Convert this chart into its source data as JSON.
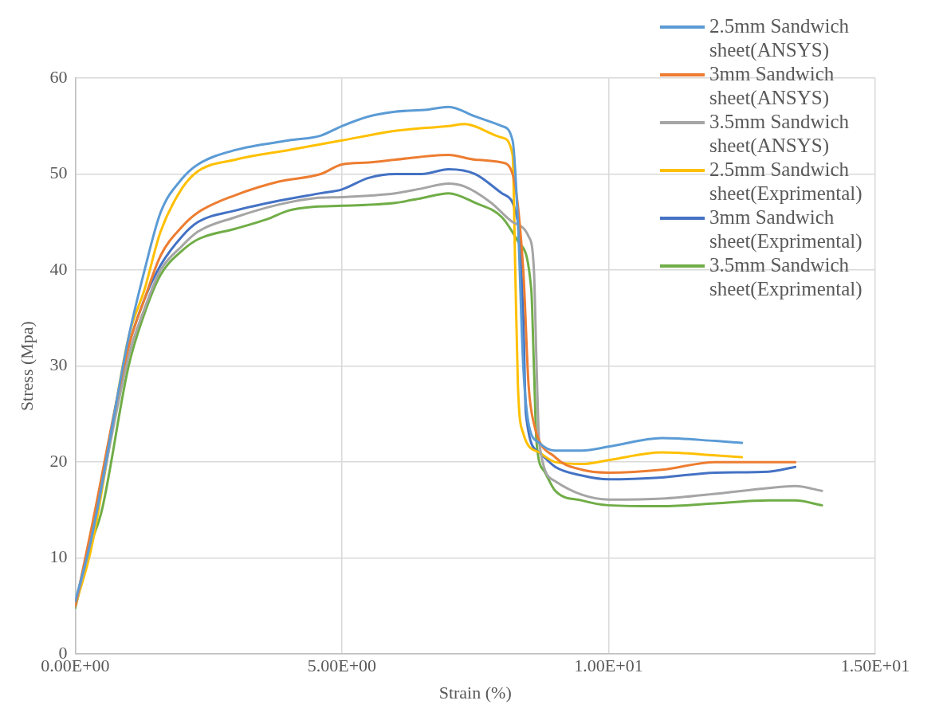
{
  "chart_data": {
    "type": "line",
    "xlabel": "Strain (%)",
    "ylabel": "Stress (Mpa)",
    "xlim": [
      0,
      15
    ],
    "xticks": [
      {
        "value": 0,
        "label": "0.00E+00"
      },
      {
        "value": 5,
        "label": "5.00E+00"
      },
      {
        "value": 10,
        "label": "1.00E+01"
      },
      {
        "value": 15,
        "label": "1.50E+01"
      }
    ],
    "ylim": [
      0,
      60
    ],
    "yticks": [
      0,
      10,
      20,
      30,
      40,
      50,
      60
    ],
    "grid": true,
    "legend": "right",
    "marker": "none",
    "line_style": "solid",
    "series": [
      {
        "name": "2.5mm Sandwich sheet(ANSYS)",
        "color": "#5b9bd5",
        "x": [
          0,
          0.3,
          1,
          1.3,
          1.6,
          2,
          2.3,
          3,
          4,
          4.6,
          5,
          5.5,
          6,
          6.6,
          7,
          7.5,
          8,
          8.2,
          8.3,
          8.4,
          8.5,
          8.7,
          9,
          9.5,
          10,
          11,
          12,
          12.5
        ],
        "values": [
          5.5,
          12,
          33,
          40,
          46,
          49.5,
          51,
          52.5,
          53.5,
          54,
          55,
          56,
          56.5,
          56.7,
          57,
          56,
          55,
          53.5,
          45,
          30,
          24,
          22,
          21.2,
          21.2,
          21.6,
          22.5,
          22.2,
          22
        ]
      },
      {
        "name": "3mm Sandwich sheet(ANSYS)",
        "color": "#ed7d31",
        "x": [
          0,
          0.3,
          1,
          1.3,
          1.6,
          2,
          2.3,
          3,
          3.8,
          4.6,
          5,
          5.5,
          6,
          7,
          7.5,
          8,
          8.2,
          8.4,
          8.5,
          8.6,
          9,
          9.5,
          10,
          11,
          12,
          13.5
        ],
        "values": [
          5,
          13,
          32,
          37,
          41.5,
          44.5,
          46,
          47.8,
          49.2,
          50,
          51,
          51.2,
          51.5,
          52,
          51.5,
          51.2,
          50,
          40,
          28,
          24,
          20.5,
          19.2,
          18.9,
          19.2,
          20,
          20
        ]
      },
      {
        "name": "3.5mm Sandwich sheet(ANSYS)",
        "color": "#a5a5a5",
        "x": [
          0,
          0.3,
          1,
          1.3,
          1.6,
          2,
          2.3,
          3,
          3.8,
          4.5,
          5,
          6,
          6.5,
          7,
          7.3,
          7.8,
          8.2,
          8.5,
          8.6,
          8.65,
          8.7,
          9,
          9.5,
          10,
          11,
          12,
          13,
          13.5,
          14
        ],
        "values": [
          5,
          12,
          31,
          36,
          40,
          42.5,
          44,
          45.5,
          46.8,
          47.5,
          47.6,
          48,
          48.5,
          49,
          48.7,
          47,
          45,
          43.5,
          40,
          30,
          22,
          18,
          16.6,
          16.1,
          16.2,
          16.7,
          17.3,
          17.5,
          17
        ]
      },
      {
        "name": "2.5mm Sandwich sheet(Exprimental)",
        "color": "#ffc000",
        "x": [
          0,
          0.3,
          1,
          1.3,
          1.6,
          2,
          2.3,
          3,
          4,
          5,
          6,
          7,
          7.3,
          8,
          8.2,
          8.25,
          8.3,
          8.4,
          8.7,
          9,
          9.5,
          10,
          11,
          12,
          12.5
        ],
        "values": [
          5,
          11,
          33,
          38,
          44,
          48.5,
          50.3,
          51.5,
          52.5,
          53.5,
          54.5,
          55,
          55.2,
          53.8,
          52,
          40,
          28,
          23,
          21,
          20,
          19.8,
          20.2,
          21,
          20.7,
          20.5
        ]
      },
      {
        "name": "3mm Sandwich sheet(Exprimental)",
        "color": "#4472c4",
        "x": [
          0,
          0.3,
          1,
          1.3,
          1.6,
          2,
          2.3,
          3,
          3.8,
          4.6,
          5,
          5.5,
          6,
          6.5,
          7,
          7.5,
          8,
          8.3,
          8.4,
          8.45,
          8.7,
          9,
          9.5,
          10,
          11,
          12,
          13,
          13.5
        ],
        "values": [
          5,
          12.5,
          32,
          37,
          40.5,
          43.5,
          45,
          46.2,
          47.2,
          48,
          48.4,
          49.6,
          50,
          50,
          50.5,
          50,
          48,
          45,
          35,
          25,
          21,
          19.5,
          18.6,
          18.2,
          18.4,
          18.9,
          19,
          19.5
        ]
      },
      {
        "name": "3.5mm Sandwich sheet(Exprimental)",
        "color": "#70ad47",
        "x": [
          0,
          0.3,
          0.5,
          1,
          1.3,
          1.6,
          2,
          2.3,
          3,
          3.6,
          4,
          4.5,
          5,
          6,
          6.5,
          7,
          7.5,
          8,
          8.3,
          8.55,
          8.6,
          8.65,
          8.8,
          9,
          9.5,
          10,
          11,
          12,
          13,
          13.5,
          14
        ],
        "values": [
          4.8,
          11.5,
          15,
          30,
          35.5,
          39.5,
          42,
          43.2,
          44.3,
          45.3,
          46.2,
          46.6,
          46.7,
          47,
          47.5,
          48,
          47,
          45.5,
          43,
          38,
          30,
          22,
          19,
          17,
          16,
          15.5,
          15.4,
          15.7,
          16,
          16,
          15.5
        ]
      }
    ]
  }
}
